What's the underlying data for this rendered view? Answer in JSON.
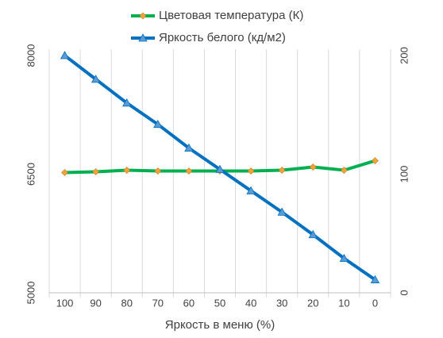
{
  "chart_data": {
    "type": "line",
    "x_label": "Яркость в меню (%)",
    "legend": "top",
    "grid": true,
    "categories": [
      "100",
      "90",
      "80",
      "70",
      "60",
      "50",
      "40",
      "30",
      "20",
      "10",
      "0"
    ],
    "series": [
      {
        "name": "Цветовая температура (К)",
        "color": "#00b050",
        "marker": "diamond",
        "marker_color": "#f2a33a",
        "axis": "y",
        "values": [
          6520,
          6530,
          6550,
          6540,
          6540,
          6540,
          6540,
          6550,
          6590,
          6550,
          6670
        ]
      },
      {
        "name": "Яркость белого (кд/м2)",
        "color": "#0070c0",
        "marker": "triangle",
        "marker_color": "#5b9bd5",
        "axis": "y2",
        "values": [
          200,
          180,
          160,
          142,
          122,
          104,
          86,
          68,
          49,
          29,
          11
        ]
      }
    ],
    "ylim": [
      5000,
      8000
    ],
    "yticks": [
      5000,
      6500,
      8000
    ],
    "y_color": "#00b050",
    "y2lim": [
      0,
      200
    ],
    "y2ticks": [
      0,
      100,
      200
    ],
    "y2_color": "#5b9bd5"
  }
}
